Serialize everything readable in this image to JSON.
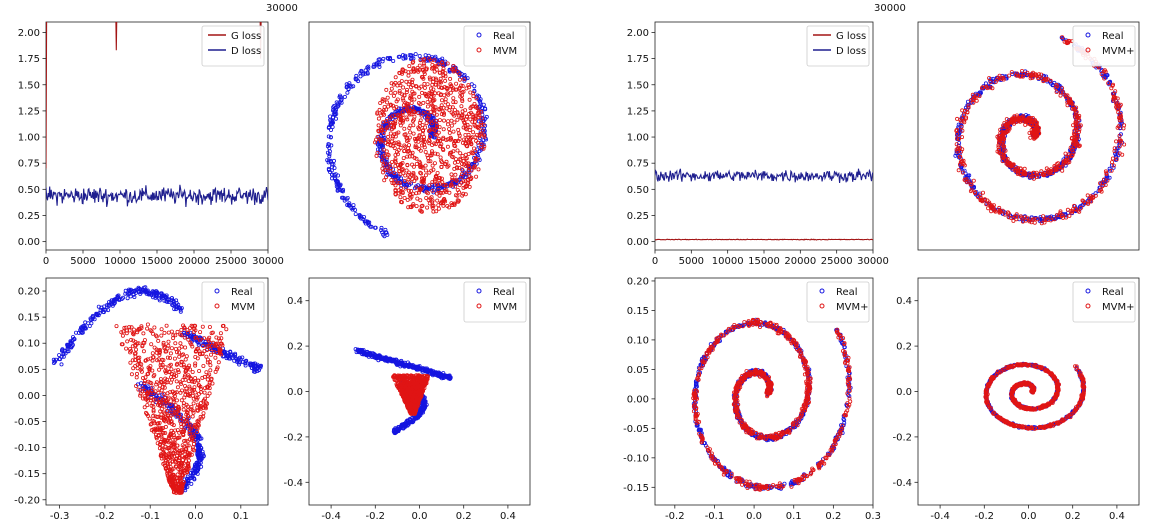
{
  "figure": {
    "top_labels": [
      "30000",
      "30000"
    ]
  },
  "chart_data": [
    {
      "id": "loss-left",
      "type": "line",
      "xlim": [
        0,
        30000
      ],
      "ylim": [
        -0.08,
        2.1
      ],
      "xticks": [
        0,
        5000,
        10000,
        15000,
        20000,
        25000,
        30000
      ],
      "yticks": [
        0.0,
        0.25,
        0.5,
        0.75,
        1.0,
        1.25,
        1.5,
        1.75,
        2.0
      ],
      "ytick_labels": [
        "0.00",
        "0.25",
        "0.50",
        "0.75",
        "1.00",
        "1.25",
        "1.50",
        "1.75",
        "2.00"
      ],
      "legend": {
        "position": "top-right"
      },
      "series": [
        {
          "name": "G loss",
          "color": "#a31515",
          "kind": "g_high",
          "base": 2.3,
          "amp": 0.08,
          "spikes": [
            [
              9500,
              1.83
            ],
            [
              29000,
              1.75
            ],
            [
              2,
              0.7
            ]
          ]
        },
        {
          "name": "D loss",
          "color": "#1f1f8f",
          "kind": "noisy",
          "base": 0.44,
          "amp": 0.09
        }
      ]
    },
    {
      "id": "scatter-top-left",
      "type": "scatter",
      "axes_hidden": true,
      "xlim": [
        -1.1,
        1.1
      ],
      "ylim": [
        -1.1,
        1.1
      ],
      "legend": {
        "position": "top-right"
      },
      "series": [
        {
          "name": "Real",
          "color": "#1515e0",
          "shape": "spiral",
          "turns": 1.7,
          "r0": 0.12,
          "r1": 1.0,
          "n": 700,
          "scale": [
            1,
            1
          ],
          "offset": [
            0,
            0
          ],
          "jitter": 0.05
        },
        {
          "name": "MVM",
          "color": "#e01515",
          "shape": "blob",
          "n": 900,
          "center": [
            0.1,
            0.0
          ],
          "radius": [
            0.55,
            0.75
          ]
        }
      ]
    },
    {
      "id": "loss-right",
      "type": "line",
      "xlim": [
        0,
        30000
      ],
      "ylim": [
        -0.08,
        2.1
      ],
      "xticks": [
        0,
        5000,
        10000,
        15000,
        20000,
        25000,
        30000
      ],
      "yticks": [
        0.0,
        0.25,
        0.5,
        0.75,
        1.0,
        1.25,
        1.5,
        1.75,
        2.0
      ],
      "ytick_labels": [
        "0.00",
        "0.25",
        "0.50",
        "0.75",
        "1.00",
        "1.25",
        "1.50",
        "1.75",
        "2.00"
      ],
      "legend": {
        "position": "top-right"
      },
      "series": [
        {
          "name": "G loss",
          "color": "#a31515",
          "kind": "flat",
          "base": 0.02,
          "amp": 0.005
        },
        {
          "name": "D loss",
          "color": "#1f1f8f",
          "kind": "noisy",
          "base": 0.63,
          "amp": 0.06
        }
      ]
    },
    {
      "id": "scatter-top-right",
      "type": "scatter",
      "axes_hidden": true,
      "xlim": [
        -1.1,
        1.1
      ],
      "ylim": [
        -1.1,
        1.1
      ],
      "legend": {
        "position": "top-right"
      },
      "series": [
        {
          "name": "Real",
          "color": "#1515e0",
          "shape": "spiral",
          "turns": 2.2,
          "r0": 0.05,
          "r1": 1.0,
          "n": 800,
          "scale": [
            1,
            1
          ],
          "offset": [
            0,
            0
          ],
          "jitter": 0.04
        },
        {
          "name": "MVM+",
          "color": "#e01515",
          "shape": "spiral",
          "turns": 2.2,
          "r0": 0.05,
          "r1": 1.0,
          "n": 700,
          "scale": [
            1,
            1
          ],
          "offset": [
            0,
            0
          ],
          "jitter": 0.06
        }
      ]
    },
    {
      "id": "scatter-bottom-1",
      "type": "scatter",
      "xlim": [
        -0.33,
        0.16
      ],
      "ylim": [
        -0.21,
        0.225
      ],
      "xticks": [
        -0.3,
        -0.2,
        -0.1,
        0.0,
        0.1
      ],
      "xtick_labels": [
        "-0.3",
        "-0.2",
        "-0.1",
        "0.0",
        "0.1"
      ],
      "yticks": [
        -0.2,
        -0.15,
        -0.1,
        -0.05,
        0.0,
        0.05,
        0.1,
        0.15,
        0.2
      ],
      "ytick_labels": [
        "-0.20",
        "-0.15",
        "-0.10",
        "-0.05",
        "0.00",
        "0.05",
        "0.10",
        "0.15",
        "0.20"
      ],
      "legend": {
        "position": "top-right"
      },
      "series": [
        {
          "name": "Real",
          "color": "#1515e0",
          "shape": "bent",
          "n": 650
        },
        {
          "name": "MVM",
          "color": "#e01515",
          "shape": "triangle",
          "n": 900,
          "center": [
            -0.05,
            0.0
          ],
          "size": [
            0.14,
            0.17
          ]
        }
      ]
    },
    {
      "id": "scatter-bottom-2",
      "type": "scatter",
      "xlim": [
        -0.5,
        0.5
      ],
      "ylim": [
        -0.5,
        0.5
      ],
      "xticks": [
        -0.4,
        -0.2,
        0.0,
        0.2,
        0.4
      ],
      "xtick_labels": [
        "-0.4",
        "-0.2",
        "0.0",
        "0.2",
        "0.4"
      ],
      "yticks": [
        -0.4,
        -0.2,
        0.0,
        0.2,
        0.4
      ],
      "ytick_labels": [
        "-0.4",
        "-0.2",
        "0.0",
        "0.2",
        "0.4"
      ],
      "legend": {
        "position": "top-right"
      },
      "series": [
        {
          "name": "Real",
          "color": "#1515e0",
          "shape": "bent_small",
          "n": 600
        },
        {
          "name": "MVM",
          "color": "#e01515",
          "shape": "triangle",
          "n": 800,
          "center": [
            -0.04,
            0.0
          ],
          "size": [
            0.09,
            0.09
          ]
        }
      ]
    },
    {
      "id": "scatter-bottom-3",
      "type": "scatter",
      "xlim": [
        -0.25,
        0.3
      ],
      "ylim": [
        -0.18,
        0.205
      ],
      "xticks": [
        -0.2,
        -0.1,
        0.0,
        0.1,
        0.2,
        0.3
      ],
      "xtick_labels": [
        "-0.2",
        "-0.1",
        "0.0",
        "0.1",
        "0.2",
        "0.3"
      ],
      "yticks": [
        -0.15,
        -0.1,
        -0.05,
        0.0,
        0.05,
        0.1,
        0.15,
        0.2
      ],
      "ytick_labels": [
        "-0.15",
        "-0.10",
        "-0.05",
        "0.00",
        "0.05",
        "0.10",
        "0.15",
        "0.20"
      ],
      "legend": {
        "position": "top-right"
      },
      "series": [
        {
          "name": "Real",
          "color": "#1515e0",
          "shape": "spiral",
          "turns": 2.1,
          "r0": 0.012,
          "r1": 0.2,
          "n": 800,
          "scale": [
            1.15,
            0.95
          ],
          "offset": [
            0.02,
            0.01
          ],
          "jitter": 0.006
        },
        {
          "name": "MVM+",
          "color": "#e01515",
          "shape": "spiral",
          "turns": 2.1,
          "r0": 0.012,
          "r1": 0.2,
          "n": 750,
          "scale": [
            1.15,
            0.95
          ],
          "offset": [
            0.02,
            0.01
          ],
          "jitter": 0.008
        }
      ]
    },
    {
      "id": "scatter-bottom-4",
      "type": "scatter",
      "xlim": [
        -0.5,
        0.5
      ],
      "ylim": [
        -0.5,
        0.5
      ],
      "xticks": [
        -0.4,
        -0.2,
        0.0,
        0.2,
        0.4
      ],
      "xtick_labels": [
        "-0.4",
        "-0.2",
        "0.0",
        "0.2",
        "0.4"
      ],
      "yticks": [
        -0.4,
        -0.2,
        0.0,
        0.2,
        0.4
      ],
      "ytick_labels": [
        "-0.4",
        "-0.2",
        "0.0",
        "0.2",
        "0.4"
      ],
      "legend": {
        "position": "top-right"
      },
      "series": [
        {
          "name": "Real",
          "color": "#1515e0",
          "shape": "spiral",
          "turns": 2.1,
          "r0": 0.012,
          "r1": 0.2,
          "n": 700,
          "scale": [
            1.3,
            0.95
          ],
          "offset": [
            0.0,
            0.0
          ],
          "jitter": 0.006
        },
        {
          "name": "MVM+",
          "color": "#e01515",
          "shape": "spiral",
          "turns": 2.1,
          "r0": 0.012,
          "r1": 0.2,
          "n": 650,
          "scale": [
            1.3,
            0.95
          ],
          "offset": [
            0.0,
            0.0
          ],
          "jitter": 0.008
        }
      ]
    }
  ]
}
